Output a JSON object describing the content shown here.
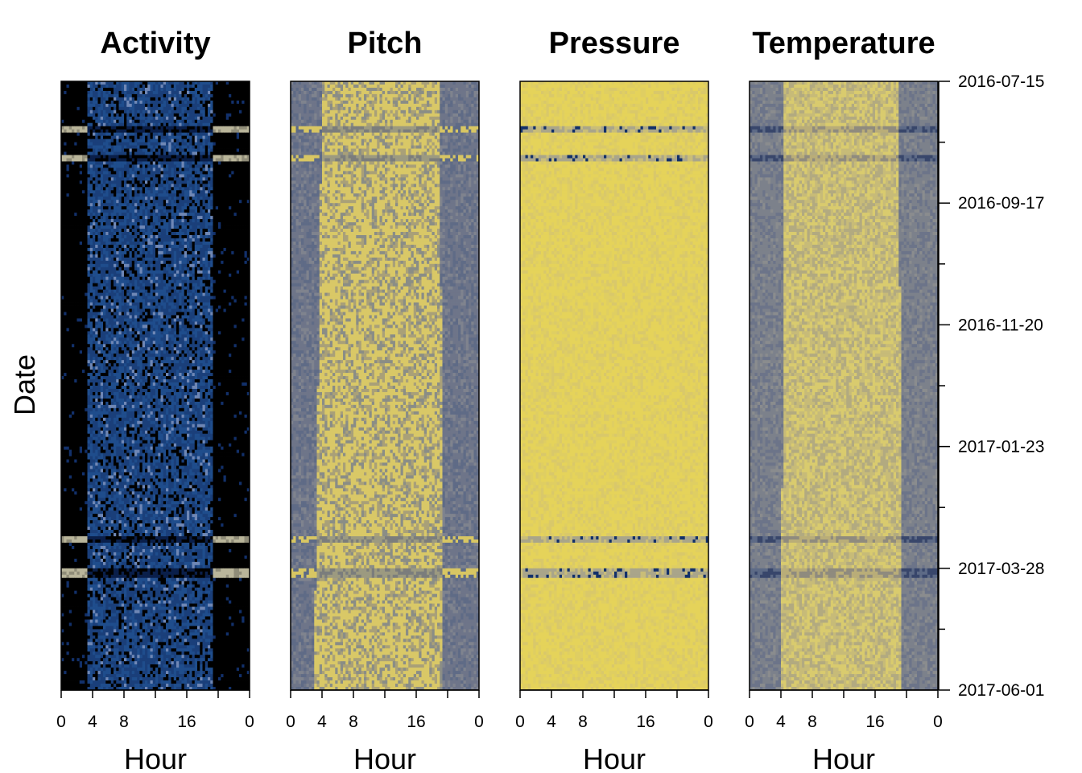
{
  "chart_data": {
    "type": "heatmap",
    "ylabel": "Date",
    "y_axis": {
      "ticks": [
        "2016-07-15",
        "2016-09-17",
        "2016-11-20",
        "2017-01-23",
        "2017-03-28",
        "2017-06-01"
      ],
      "range": [
        "2016-07-15",
        "2017-06-01"
      ],
      "orientation": "top-to-bottom"
    },
    "x_axis": {
      "label": "Hour",
      "range": [
        0,
        24
      ],
      "major_ticks": [
        0,
        4,
        8,
        16,
        24
      ],
      "major_tick_labels": [
        "0",
        "4",
        "8",
        "16",
        "0"
      ],
      "minor_ticks": [
        12,
        20
      ]
    },
    "colors": {
      "black": "#000000",
      "navy": "#12306a",
      "blue": "#1f4d8c",
      "grey": "#7f8590",
      "slate": "#5d6a86",
      "beige": "#b9b59a",
      "yellow": "#e6d55a",
      "bright_yellow": "#f0e27a"
    },
    "panels": [
      {
        "title": "Activity",
        "palette": "activity",
        "active_start_hour": {
          "start": 3.5,
          "end": 3.5
        },
        "active_end_hour": {
          "start": 19.3,
          "end": 19.4
        },
        "description_values": {
          "background": "black",
          "active": "blue",
          "gap_bands": "beige"
        }
      },
      {
        "title": "Pitch",
        "palette": "pitch",
        "active_start_hour": {
          "start": 4.0,
          "end": 3.0
        },
        "active_end_hour": {
          "start": 19.0,
          "end": 19.5
        }
      },
      {
        "title": "Pressure",
        "palette": "pressure",
        "active_start_hour": {
          "start": 0,
          "end": 0
        },
        "active_end_hour": {
          "start": 24,
          "end": 24
        }
      },
      {
        "title": "Temperature",
        "palette": "temperature",
        "active_start_hour": {
          "start": 4.5,
          "end": 4.0
        },
        "active_end_hour": {
          "start": 19.0,
          "end": 19.5
        }
      }
    ],
    "gap_bands_fraction_of_period": [
      {
        "from": 0.072,
        "to": 0.083
      },
      {
        "from": 0.118,
        "to": 0.13
      },
      {
        "from": 0.744,
        "to": 0.757
      },
      {
        "from": 0.8,
        "to": 0.812
      }
    ]
  }
}
